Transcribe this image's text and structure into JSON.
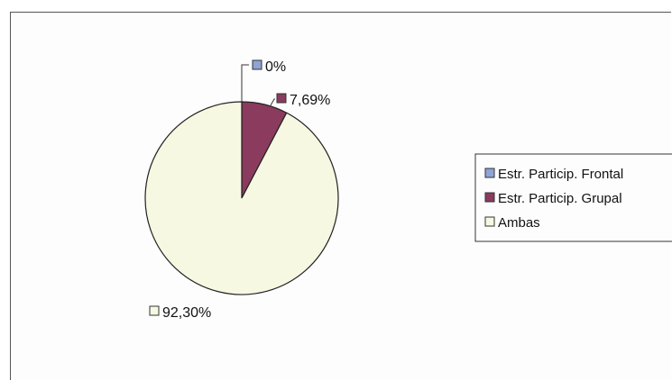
{
  "chart_data": {
    "type": "pie",
    "slices": [
      {
        "name": "Estr. Particip. Frontal",
        "value": 0,
        "label": "0%",
        "color": "#8fa3d6"
      },
      {
        "name": "Estr. Particip. Grupal",
        "value": 7.69,
        "label": "7,69%",
        "color": "#8a3b5e"
      },
      {
        "name": "Ambas",
        "value": 92.3,
        "label": "92,30%",
        "color": "#f7f8e2"
      }
    ],
    "legend": {
      "placement": "right",
      "entries": [
        "Estr. Particip. Frontal",
        "Estr. Particip. Grupal",
        "Ambas"
      ]
    }
  }
}
